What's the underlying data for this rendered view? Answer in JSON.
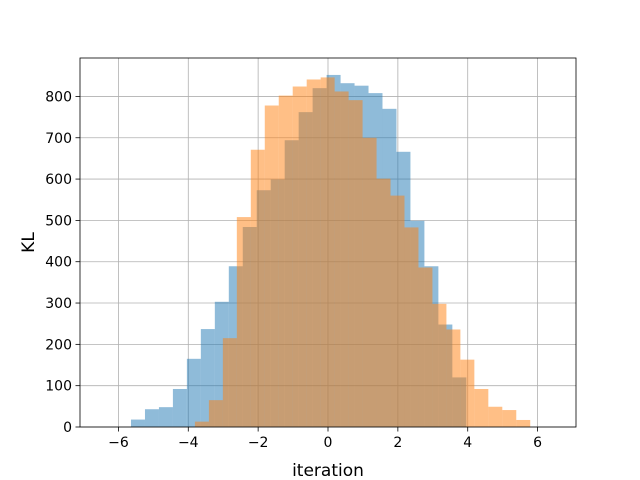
{
  "chart_data": {
    "type": "bar",
    "title": "",
    "xlabel": "iteration",
    "ylabel": "KL",
    "xlim": [
      -7.1,
      7.1
    ],
    "ylim": [
      0,
      893
    ],
    "grid": true,
    "legend": "none",
    "x_ticks": [
      -6,
      -4,
      -2,
      0,
      2,
      4,
      6
    ],
    "x_tick_labels": [
      "−6",
      "−4",
      "−2",
      "0",
      "2",
      "4",
      "6"
    ],
    "y_ticks": [
      0,
      100,
      200,
      300,
      400,
      500,
      600,
      700,
      800
    ],
    "y_tick_labels": [
      "0",
      "100",
      "200",
      "300",
      "400",
      "500",
      "600",
      "700",
      "800"
    ],
    "series": [
      {
        "color": "#1f77b4",
        "opacity": 0.5,
        "bins": [
          {
            "x0": -5.64,
            "x1": -5.24,
            "value": 18
          },
          {
            "x0": -5.24,
            "x1": -4.84,
            "value": 43
          },
          {
            "x0": -4.84,
            "x1": -4.44,
            "value": 48
          },
          {
            "x0": -4.44,
            "x1": -4.04,
            "value": 92
          },
          {
            "x0": -4.04,
            "x1": -3.64,
            "value": 165
          },
          {
            "x0": -3.64,
            "x1": -3.24,
            "value": 237
          },
          {
            "x0": -3.24,
            "x1": -2.84,
            "value": 303
          },
          {
            "x0": -2.84,
            "x1": -2.44,
            "value": 389
          },
          {
            "x0": -2.44,
            "x1": -2.04,
            "value": 484
          },
          {
            "x0": -2.04,
            "x1": -1.64,
            "value": 573
          },
          {
            "x0": -1.64,
            "x1": -1.24,
            "value": 599
          },
          {
            "x0": -1.24,
            "x1": -0.84,
            "value": 694
          },
          {
            "x0": -0.84,
            "x1": -0.44,
            "value": 762
          },
          {
            "x0": -0.44,
            "x1": -0.04,
            "value": 820
          },
          {
            "x0": -0.04,
            "x1": 0.36,
            "value": 852
          },
          {
            "x0": 0.36,
            "x1": 0.76,
            "value": 832
          },
          {
            "x0": 0.76,
            "x1": 1.16,
            "value": 826
          },
          {
            "x0": 1.16,
            "x1": 1.56,
            "value": 808
          },
          {
            "x0": 1.56,
            "x1": 1.96,
            "value": 770
          },
          {
            "x0": 1.96,
            "x1": 2.36,
            "value": 666
          },
          {
            "x0": 2.36,
            "x1": 2.76,
            "value": 499
          },
          {
            "x0": 2.76,
            "x1": 3.16,
            "value": 389
          },
          {
            "x0": 3.16,
            "x1": 3.56,
            "value": 248
          },
          {
            "x0": 3.56,
            "x1": 3.96,
            "value": 120
          }
        ]
      },
      {
        "color": "#ff7f0e",
        "opacity": 0.5,
        "bins": [
          {
            "x0": -3.81,
            "x1": -3.41,
            "value": 13
          },
          {
            "x0": -3.41,
            "x1": -3.01,
            "value": 65
          },
          {
            "x0": -3.01,
            "x1": -2.61,
            "value": 215
          },
          {
            "x0": -2.61,
            "x1": -2.21,
            "value": 508
          },
          {
            "x0": -2.21,
            "x1": -1.81,
            "value": 671
          },
          {
            "x0": -1.81,
            "x1": -1.41,
            "value": 778
          },
          {
            "x0": -1.41,
            "x1": -1.01,
            "value": 802
          },
          {
            "x0": -1.01,
            "x1": -0.61,
            "value": 824
          },
          {
            "x0": -0.61,
            "x1": -0.21,
            "value": 841
          },
          {
            "x0": -0.21,
            "x1": 0.19,
            "value": 846
          },
          {
            "x0": 0.19,
            "x1": 0.59,
            "value": 812
          },
          {
            "x0": 0.59,
            "x1": 0.99,
            "value": 791
          },
          {
            "x0": 0.99,
            "x1": 1.39,
            "value": 700
          },
          {
            "x0": 1.39,
            "x1": 1.79,
            "value": 601
          },
          {
            "x0": 1.79,
            "x1": 2.19,
            "value": 560
          },
          {
            "x0": 2.19,
            "x1": 2.59,
            "value": 483
          },
          {
            "x0": 2.59,
            "x1": 2.99,
            "value": 386
          },
          {
            "x0": 2.99,
            "x1": 3.39,
            "value": 298
          },
          {
            "x0": 3.39,
            "x1": 3.79,
            "value": 236
          },
          {
            "x0": 3.79,
            "x1": 4.19,
            "value": 163
          },
          {
            "x0": 4.19,
            "x1": 4.59,
            "value": 92
          },
          {
            "x0": 4.59,
            "x1": 4.99,
            "value": 49
          },
          {
            "x0": 4.99,
            "x1": 5.39,
            "value": 41
          },
          {
            "x0": 5.39,
            "x1": 5.79,
            "value": 17
          }
        ]
      }
    ]
  }
}
